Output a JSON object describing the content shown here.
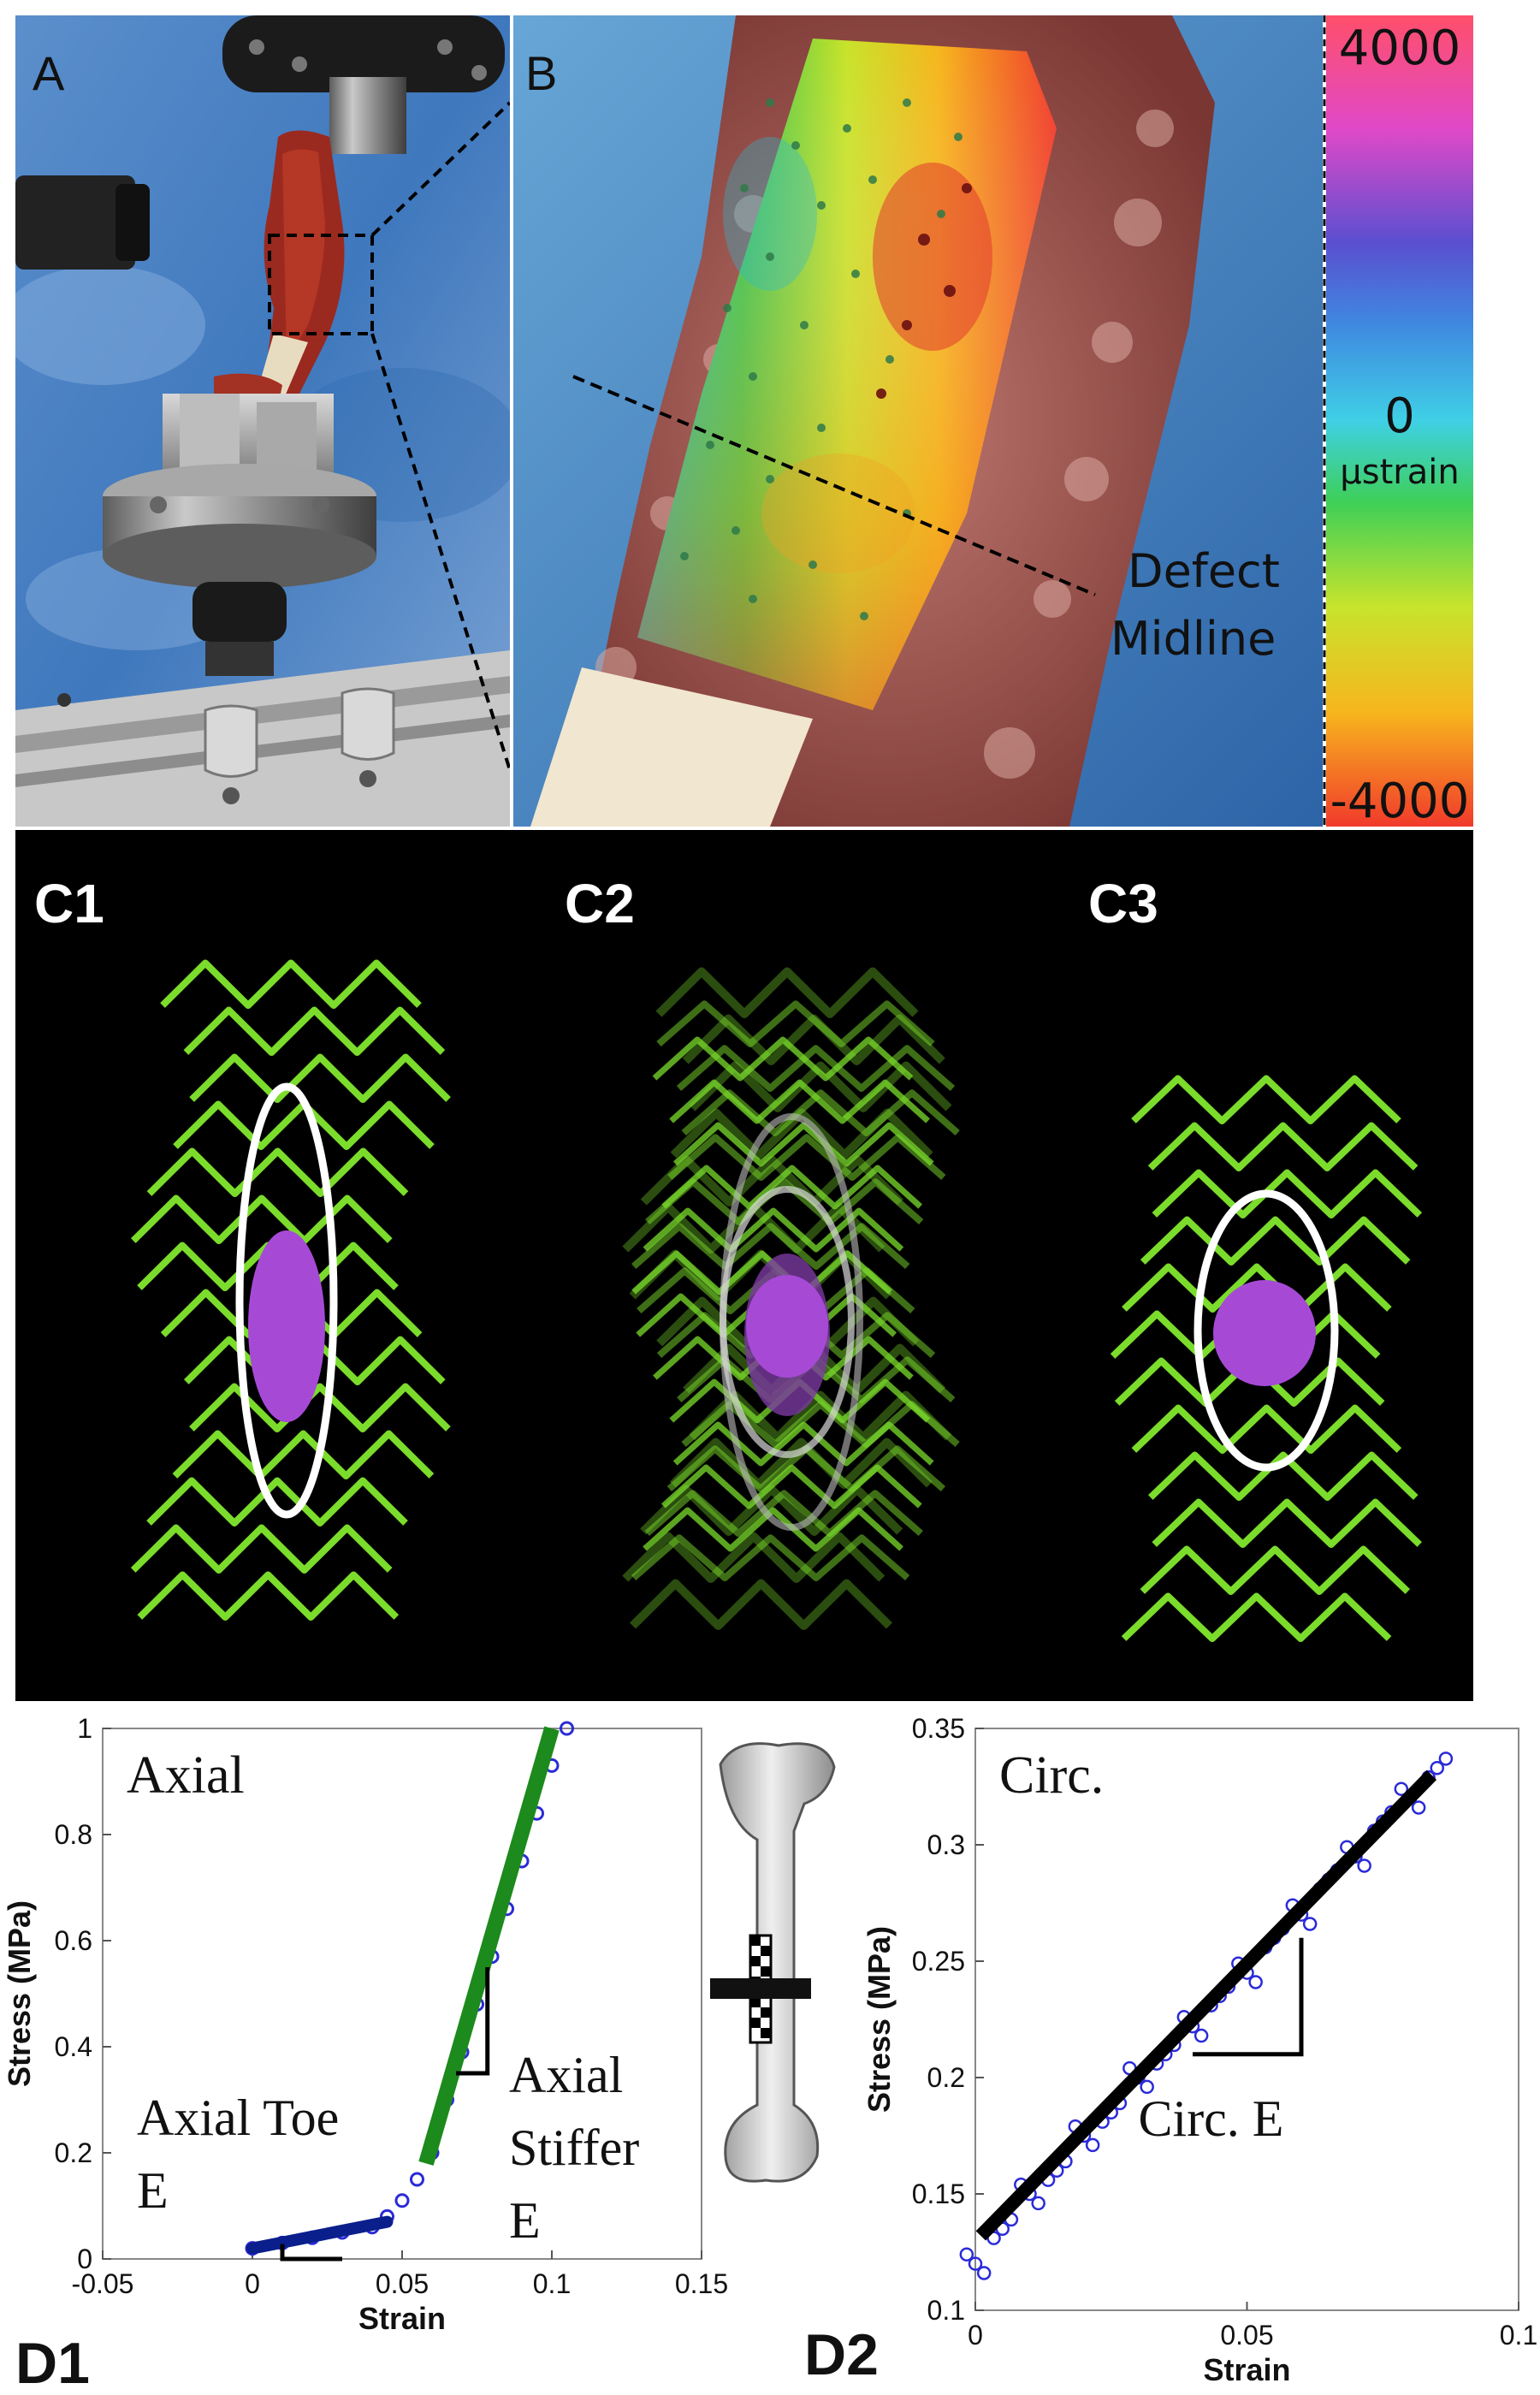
{
  "panels": {
    "A": "A",
    "B": "B",
    "C1": "C1",
    "C2": "C2",
    "C3": "C3",
    "D1": "D1",
    "D2": "D2"
  },
  "panel_b": {
    "colorbar_max": "4000",
    "colorbar_zero": "0",
    "colorbar_unit": "µstrain",
    "colorbar_min": "-4000",
    "defect_label_line1": "Defect",
    "defect_label_line2": "Midline"
  },
  "colors": {
    "tissue": "#9c4b48",
    "background_blue": "#4f86c4",
    "spring_green": "#7bdc2c",
    "ellipse_white": "#ffffff",
    "core_purple": "#a64ad6",
    "axial_toe_fit": "#0a1f8c",
    "axial_stiff_fit": "#1c8a1c",
    "data_points": "#2a2ad8",
    "circ_fit": "#000000"
  },
  "chart_data": [
    {
      "type": "scatter",
      "panel": "D1",
      "title": "",
      "inner_title": "Axial",
      "xlabel": "Strain",
      "ylabel": "Stress (MPa)",
      "xlim": [
        -0.05,
        0.15
      ],
      "ylim": [
        0,
        1
      ],
      "xticks": [
        "-0.05",
        "0",
        "0.05",
        "0.1",
        "0.15"
      ],
      "xtick_values": [
        -0.05,
        0,
        0.05,
        0.1,
        0.15
      ],
      "yticks": [
        "0",
        "0.2",
        "0.4",
        "0.6",
        "0.8",
        "1"
      ],
      "ytick_values": [
        0,
        0.2,
        0.4,
        0.6,
        0.8,
        1
      ],
      "series": [
        {
          "kind": "points",
          "x": [
            0,
            0.01,
            0.02,
            0.03,
            0.04,
            0.045,
            0.05,
            0.055,
            0.06,
            0.065,
            0.07,
            0.075,
            0.08,
            0.085,
            0.09,
            0.095,
            0.1,
            0.105
          ],
          "y": [
            0.02,
            0.03,
            0.04,
            0.05,
            0.06,
            0.08,
            0.11,
            0.15,
            0.2,
            0.3,
            0.39,
            0.48,
            0.57,
            0.66,
            0.75,
            0.84,
            0.93,
            1.0
          ]
        },
        {
          "kind": "fit",
          "x": [
            0,
            0.045
          ],
          "y": [
            0.02,
            0.07
          ]
        },
        {
          "kind": "fit",
          "x": [
            0.058,
            0.1
          ],
          "y": [
            0.18,
            1.0
          ]
        }
      ],
      "annotations": {
        "toe_line1": "Axial Toe",
        "toe_line2": "E",
        "stiff_line1": "Axial",
        "stiff_line2": "Stiffer",
        "stiff_line3": "E"
      }
    },
    {
      "type": "scatter",
      "panel": "D2",
      "title": "",
      "inner_title": "Circ.",
      "xlabel": "Strain",
      "ylabel": "Stress (MPa)",
      "xlim": [
        0,
        0.1
      ],
      "ylim": [
        0.1,
        0.35
      ],
      "xticks": [
        "0",
        "0.05",
        "0.1"
      ],
      "xtick_values": [
        0,
        0.05,
        0.1
      ],
      "yticks": [
        "0.1",
        "0.15",
        "0.2",
        "0.25",
        "0.3",
        "0.35"
      ],
      "ytick_values": [
        0.1,
        0.15,
        0.2,
        0.25,
        0.3,
        0.35
      ],
      "series": [
        {
          "kind": "points",
          "x": [
            0,
            0.005,
            0.01,
            0.015,
            0.02,
            0.025,
            0.03,
            0.035,
            0.04,
            0.045,
            0.05,
            0.055,
            0.06,
            0.065,
            0.07,
            0.075,
            0.08,
            0.085
          ],
          "y": [
            0.12,
            0.135,
            0.15,
            0.16,
            0.175,
            0.185,
            0.2,
            0.21,
            0.222,
            0.235,
            0.245,
            0.26,
            0.27,
            0.285,
            0.295,
            0.31,
            0.32,
            0.333
          ]
        },
        {
          "kind": "fit",
          "x": [
            0.001,
            0.084
          ],
          "y": [
            0.132,
            0.33
          ]
        }
      ],
      "annotations": {
        "slope_label": "Circ. E"
      }
    }
  ]
}
